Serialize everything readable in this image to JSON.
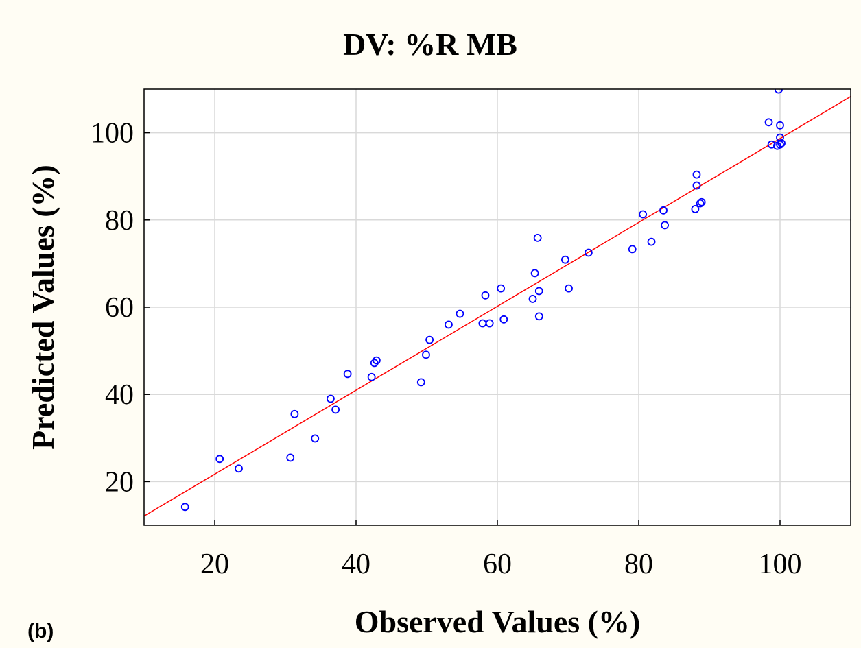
{
  "chart_data": {
    "type": "scatter",
    "title": "DV: %R MB",
    "x_label": "Observed Values (%)",
    "y_label": "Predicted Values (%)",
    "panel_label": "(b)",
    "xlim": [
      10,
      110
    ],
    "ylim": [
      10,
      110
    ],
    "xticks": [
      20,
      40,
      60,
      80,
      100
    ],
    "yticks": [
      20,
      40,
      60,
      80,
      100
    ],
    "grid": true,
    "series": [
      {
        "color": "#0000ff",
        "x": [
          15.8,
          20.7,
          23.4,
          30.7,
          31.3,
          34.2,
          36.4,
          37.1,
          38.8,
          42.2,
          42.6,
          42.9,
          49.2,
          49.9,
          50.4,
          53.1,
          54.7,
          57.9,
          58.9,
          58.3,
          60.5,
          60.9,
          65.0,
          65.3,
          65.9,
          65.7,
          65.9,
          69.6,
          70.1,
          72.9,
          79.1,
          80.6,
          81.8,
          83.5,
          83.7,
          88.0,
          88.2,
          88.2,
          88.7,
          88.9,
          98.4,
          98.8,
          99.6,
          100.0,
          100.2,
          100.0,
          100.0,
          99.8
        ],
        "values": [
          14.2,
          25.2,
          23.0,
          25.5,
          35.5,
          29.9,
          39.0,
          36.5,
          44.7,
          44.0,
          47.2,
          47.8,
          42.8,
          49.1,
          52.5,
          56.0,
          58.5,
          56.3,
          56.3,
          62.7,
          64.3,
          57.2,
          61.9,
          67.8,
          63.7,
          75.9,
          57.9,
          70.9,
          64.3,
          72.5,
          73.3,
          81.3,
          75.0,
          82.2,
          78.8,
          82.5,
          90.4,
          87.9,
          83.8,
          84.1,
          102.4,
          97.3,
          97.0,
          97.3,
          97.6,
          98.9,
          101.7,
          109.9
        ]
      }
    ],
    "fit_line": {
      "x": [
        10,
        110
      ],
      "y": [
        12.1,
        108.3
      ],
      "color": "#ff0000"
    }
  }
}
